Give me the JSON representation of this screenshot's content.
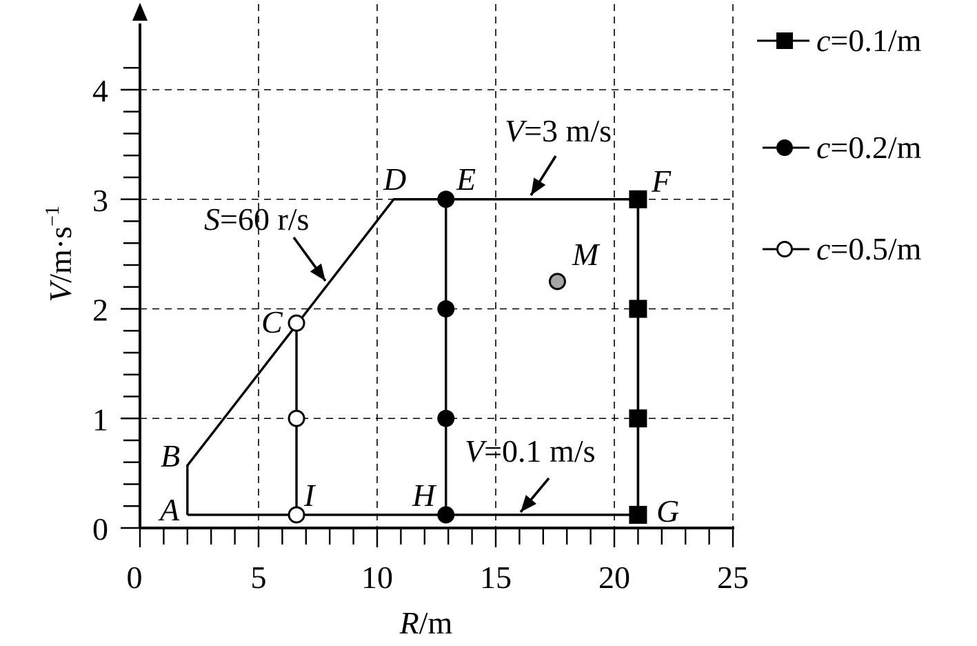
{
  "chart_data": {
    "type": "scatter",
    "title": "",
    "xlabel": {
      "var": "R",
      "unit": "/m"
    },
    "ylabel": {
      "var": "V",
      "unit": "/m·s",
      "exp": "−1"
    },
    "xlim": [
      0,
      25
    ],
    "ylim": [
      0,
      4.5
    ],
    "x_ticks": [
      "0",
      "5",
      "10",
      "15",
      "20",
      "25"
    ],
    "y_ticks": [
      "0",
      "1",
      "2",
      "3",
      "4"
    ],
    "grid": true,
    "legend_position": "right",
    "boundary": {
      "vertices": [
        {
          "label": "A",
          "x": 2.0,
          "y": 0.12
        },
        {
          "label": "B",
          "x": 2.0,
          "y": 0.57
        },
        {
          "label": "D",
          "x": 10.7,
          "y": 3.0
        },
        {
          "label": "F",
          "x": 21.0,
          "y": 3.0
        },
        {
          "label": "G",
          "x": 21.0,
          "y": 0.12
        }
      ],
      "annotations": [
        {
          "var": "S",
          "text": "=60 r/s"
        },
        {
          "var": "V",
          "text": "=3 m/s"
        },
        {
          "var": "V",
          "text": "=0.1 m/s"
        }
      ]
    },
    "series": [
      {
        "name": {
          "var": "c",
          "text": "=0.1/m"
        },
        "marker": "square-filled",
        "points": [
          {
            "x": 21.0,
            "y": 3.0,
            "label": "F"
          },
          {
            "x": 21.0,
            "y": 2.0,
            "label": ""
          },
          {
            "x": 21.0,
            "y": 1.0,
            "label": ""
          },
          {
            "x": 21.0,
            "y": 0.12,
            "label": "G"
          }
        ]
      },
      {
        "name": {
          "var": "c",
          "text": "=0.2/m"
        },
        "marker": "circle-filled",
        "points": [
          {
            "x": 12.9,
            "y": 3.0,
            "label": "E"
          },
          {
            "x": 12.9,
            "y": 2.0,
            "label": ""
          },
          {
            "x": 12.9,
            "y": 1.0,
            "label": ""
          },
          {
            "x": 12.9,
            "y": 0.12,
            "label": "H"
          }
        ]
      },
      {
        "name": {
          "var": "c",
          "text": "=0.5/m"
        },
        "marker": "circle-open",
        "points": [
          {
            "x": 6.6,
            "y": 1.87,
            "label": "C"
          },
          {
            "x": 6.6,
            "y": 1.0,
            "label": ""
          },
          {
            "x": 6.6,
            "y": 0.12,
            "label": "I"
          }
        ]
      }
    ],
    "extra_points": [
      {
        "label": "M",
        "x": 17.6,
        "y": 2.25,
        "marker": "circle-gray"
      }
    ],
    "colors": {
      "line": "#000000",
      "gray_marker": "#a6a6a6",
      "background": "#ffffff"
    }
  }
}
